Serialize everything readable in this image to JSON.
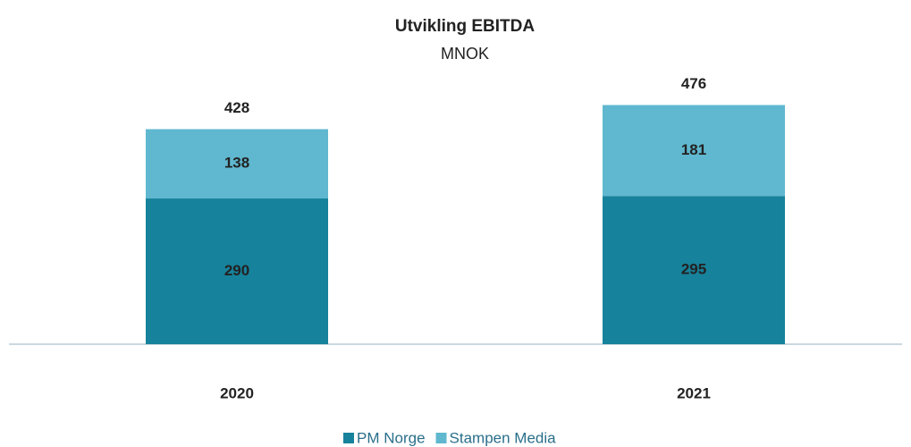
{
  "chart_data": {
    "type": "stacked_bar",
    "title": "Utvikling EBITDA",
    "subtitle": "MNOK",
    "categories": [
      "2020",
      "2021"
    ],
    "series": [
      {
        "name": "PM Norge",
        "color": "#17829b",
        "values": [
          290,
          295
        ]
      },
      {
        "name": "Stampen Media",
        "color": "#5fb8cf",
        "values": [
          138,
          181
        ]
      }
    ],
    "totals": [
      428,
      476
    ]
  }
}
